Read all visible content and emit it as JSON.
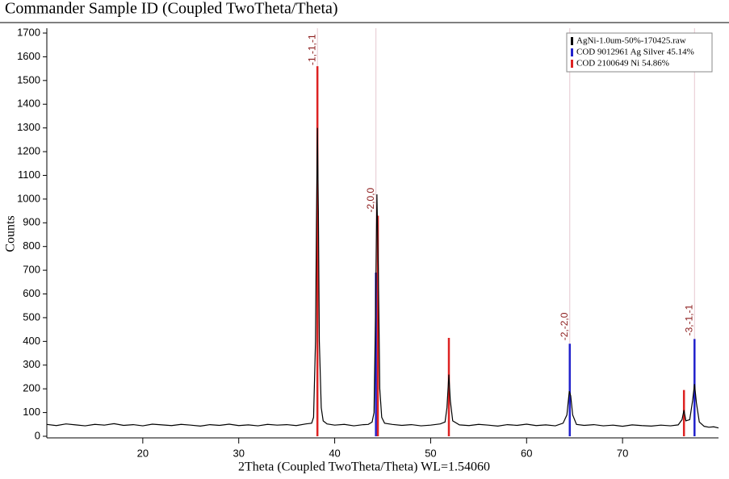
{
  "chart_data": {
    "type": "line",
    "title": "Commander Sample ID (Coupled TwoTheta/Theta)",
    "xlabel": "2Theta (Coupled TwoTheta/Theta) WL=1.54060",
    "ylabel": "Counts",
    "xlim": [
      10,
      80
    ],
    "ylim": [
      0,
      1700
    ],
    "xticks": [
      20,
      30,
      40,
      50,
      60,
      70
    ],
    "yticks": [
      0,
      100,
      200,
      300,
      400,
      500,
      600,
      700,
      800,
      900,
      1000,
      1100,
      1200,
      1300,
      1400,
      1500,
      1600,
      1700
    ],
    "legend": "upper right",
    "series": [
      {
        "name": "AgNi-1.0um-50%-170425.raw",
        "color": "#000000",
        "type": "line",
        "x": [
          10,
          11,
          12,
          13,
          14,
          15,
          16,
          17,
          18,
          19,
          20,
          21,
          22,
          23,
          24,
          25,
          26,
          27,
          28,
          29,
          30,
          31,
          32,
          33,
          34,
          35,
          36,
          37,
          37.6,
          37.8,
          38.0,
          38.1,
          38.2,
          38.3,
          38.4,
          38.6,
          38.8,
          39.2,
          40,
          41,
          42,
          43,
          43.5,
          43.9,
          44.1,
          44.25,
          44.4,
          44.55,
          44.7,
          44.9,
          45.2,
          46,
          47,
          48,
          49,
          50,
          51,
          51.5,
          51.7,
          51.9,
          52.05,
          52.3,
          53,
          54,
          55,
          56,
          57,
          58,
          59,
          60,
          61,
          62,
          63,
          63.8,
          64.2,
          64.45,
          64.6,
          64.8,
          65.2,
          66,
          67,
          68,
          69,
          70,
          71,
          72,
          73,
          74,
          75,
          75.8,
          76.2,
          76.4,
          76.6,
          77.0,
          77.3,
          77.5,
          77.7,
          78.0,
          78.5,
          79,
          79.5,
          80
        ],
        "values": [
          50,
          45,
          52,
          48,
          44,
          50,
          47,
          53,
          46,
          49,
          44,
          51,
          48,
          45,
          50,
          47,
          43,
          49,
          46,
          51,
          45,
          48,
          44,
          50,
          47,
          49,
          45,
          52,
          55,
          80,
          400,
          900,
          1300,
          950,
          400,
          120,
          65,
          52,
          47,
          50,
          44,
          49,
          50,
          60,
          100,
          500,
          1020,
          700,
          200,
          80,
          55,
          50,
          46,
          49,
          44,
          47,
          52,
          60,
          120,
          260,
          150,
          65,
          48,
          45,
          50,
          47,
          43,
          49,
          46,
          51,
          45,
          48,
          44,
          55,
          90,
          190,
          170,
          90,
          50,
          46,
          49,
          44,
          47,
          42,
          48,
          45,
          43,
          47,
          44,
          48,
          70,
          110,
          65,
          70,
          150,
          220,
          140,
          60,
          42,
          38,
          40,
          35
        ]
      },
      {
        "name": "COD 9012961 Ag Silver 45.14%",
        "color": "#2222cc",
        "type": "stick",
        "x": [
          44.3,
          64.5,
          77.5
        ],
        "values": [
          690,
          390,
          410
        ]
      },
      {
        "name": "COD 2100649 Ni 54.86%",
        "color": "#dd2222",
        "type": "stick",
        "x": [
          38.2,
          44.5,
          51.9,
          76.4
        ],
        "values": [
          1560,
          930,
          415,
          195
        ]
      }
    ],
    "annotations": [
      {
        "text": "-1,-1,-1",
        "x": 38.2
      },
      {
        "text": "-2,0,0",
        "x": 44.3
      },
      {
        "text": "-2,-2,0",
        "x": 64.5
      },
      {
        "text": "-3,-1,-1",
        "x": 77.5
      }
    ]
  }
}
